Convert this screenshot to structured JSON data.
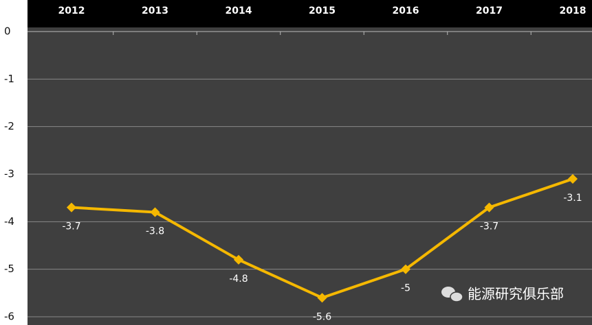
{
  "chart_data": {
    "type": "line",
    "categories": [
      "2012",
      "2013",
      "2014",
      "2015",
      "2016",
      "2017",
      "2018"
    ],
    "series": [
      {
        "name": null,
        "color": "#f5b800",
        "values": [
          -3.7,
          -3.8,
          -4.8,
          -5.6,
          -5,
          -3.7,
          -3.1
        ]
      }
    ],
    "ylim": [
      0,
      -6
    ],
    "yticks": [
      0,
      -1,
      -2,
      -3,
      -4,
      -5,
      -6
    ],
    "grid": true,
    "annotation": "能源研究俱乐部"
  }
}
